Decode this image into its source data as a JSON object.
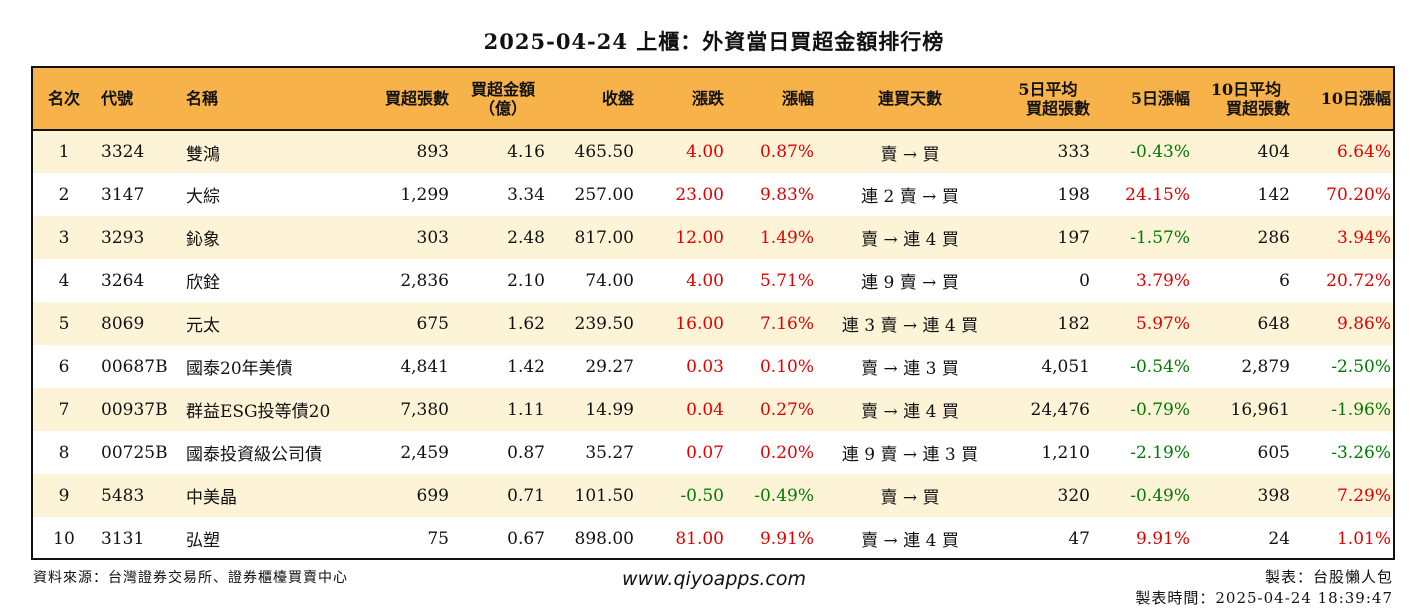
{
  "title": "2025-04-24 上櫃：外資當日買超金額排行榜",
  "headers": {
    "rank": "名次",
    "code": "代號",
    "name": "名稱",
    "buy_lots": "買超張數",
    "buy_amount_l1": "買超金額",
    "buy_amount_l2": "（億）",
    "close": "收盤",
    "change": "漲跌",
    "change_pct": "漲幅",
    "streak": "連買天數",
    "avg5_l1": "5日平均",
    "avg5_l2": "買超張數",
    "pct5": "5日漲幅",
    "avg10_l1": "10日平均",
    "avg10_l2": "買超張數",
    "pct10": "10日漲幅"
  },
  "rows": [
    {
      "rank": "1",
      "code": "3324",
      "name": "雙鴻",
      "buy_lots": "893",
      "buy_amount": "4.16",
      "close": "465.50",
      "change": "4.00",
      "change_pct": "0.87%",
      "streak": "賣 → 買",
      "avg5": "333",
      "pct5": "-0.43%",
      "avg10": "404",
      "pct10": "6.64%"
    },
    {
      "rank": "2",
      "code": "3147",
      "name": "大綜",
      "buy_lots": "1,299",
      "buy_amount": "3.34",
      "close": "257.00",
      "change": "23.00",
      "change_pct": "9.83%",
      "streak": "連 2 賣 → 買",
      "avg5": "198",
      "pct5": "24.15%",
      "avg10": "142",
      "pct10": "70.20%"
    },
    {
      "rank": "3",
      "code": "3293",
      "name": "鈊象",
      "buy_lots": "303",
      "buy_amount": "2.48",
      "close": "817.00",
      "change": "12.00",
      "change_pct": "1.49%",
      "streak": "賣 → 連 4 買",
      "avg5": "197",
      "pct5": "-1.57%",
      "avg10": "286",
      "pct10": "3.94%"
    },
    {
      "rank": "4",
      "code": "3264",
      "name": "欣銓",
      "buy_lots": "2,836",
      "buy_amount": "2.10",
      "close": "74.00",
      "change": "4.00",
      "change_pct": "5.71%",
      "streak": "連 9 賣 → 買",
      "avg5": "0",
      "pct5": "3.79%",
      "avg10": "6",
      "pct10": "20.72%"
    },
    {
      "rank": "5",
      "code": "8069",
      "name": "元太",
      "buy_lots": "675",
      "buy_amount": "1.62",
      "close": "239.50",
      "change": "16.00",
      "change_pct": "7.16%",
      "streak": "連 3 賣 → 連 4 買",
      "avg5": "182",
      "pct5": "5.97%",
      "avg10": "648",
      "pct10": "9.86%"
    },
    {
      "rank": "6",
      "code": "00687B",
      "name": "國泰20年美債",
      "buy_lots": "4,841",
      "buy_amount": "1.42",
      "close": "29.27",
      "change": "0.03",
      "change_pct": "0.10%",
      "streak": "賣 → 連 3 買",
      "avg5": "4,051",
      "pct5": "-0.54%",
      "avg10": "2,879",
      "pct10": "-2.50%"
    },
    {
      "rank": "7",
      "code": "00937B",
      "name": "群益ESG投等債20",
      "buy_lots": "7,380",
      "buy_amount": "1.11",
      "close": "14.99",
      "change": "0.04",
      "change_pct": "0.27%",
      "streak": "賣 → 連 4 買",
      "avg5": "24,476",
      "pct5": "-0.79%",
      "avg10": "16,961",
      "pct10": "-1.96%"
    },
    {
      "rank": "8",
      "code": "00725B",
      "name": "國泰投資級公司債",
      "buy_lots": "2,459",
      "buy_amount": "0.87",
      "close": "35.27",
      "change": "0.07",
      "change_pct": "0.20%",
      "streak": "連 9 賣 → 連 3 買",
      "avg5": "1,210",
      "pct5": "-2.19%",
      "avg10": "605",
      "pct10": "-3.26%"
    },
    {
      "rank": "9",
      "code": "5483",
      "name": "中美晶",
      "buy_lots": "699",
      "buy_amount": "0.71",
      "close": "101.50",
      "change": "-0.50",
      "change_pct": "-0.49%",
      "streak": "賣 → 買",
      "avg5": "320",
      "pct5": "-0.49%",
      "avg10": "398",
      "pct10": "7.29%"
    },
    {
      "rank": "10",
      "code": "3131",
      "name": "弘塑",
      "buy_lots": "75",
      "buy_amount": "0.67",
      "close": "898.00",
      "change": "81.00",
      "change_pct": "9.91%",
      "streak": "賣 → 連 4 買",
      "avg5": "47",
      "pct5": "9.91%",
      "avg10": "24",
      "pct10": "1.01%"
    }
  ],
  "footer": {
    "source": "資料來源：台灣證券交易所、證券櫃檯買賣中心",
    "website": "www.qiyoapps.com",
    "maker": "製表：台股懶人包",
    "made_time": "製表時間：2025-04-24 18:39:47"
  },
  "colors": {
    "header_bg": "#f7b24a",
    "row_alt_bg": "#fdf3d6",
    "positive": "#e00000",
    "negative": "#007a00"
  }
}
